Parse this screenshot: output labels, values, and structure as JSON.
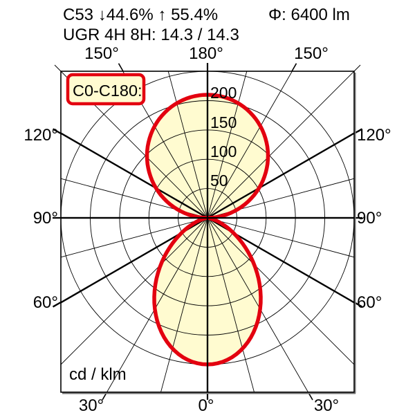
{
  "page": {
    "background": "#ffffff"
  },
  "header": {
    "line1_left": "C53 ↓44.6% ↑ 55.4%",
    "line1_right": "Φ: 6400 lm",
    "line2": "UGR 4H 8H: 14.3 / 14.3"
  },
  "legend": {
    "label": "C0-C180:",
    "fill_color": "#fffbd0",
    "border_color": "#e3000f",
    "text_color": "#c41414"
  },
  "colors": {
    "curve": "#e3000f",
    "lobe_fill": "#fffbd0",
    "grid": "#000000",
    "background": "#ffffff"
  },
  "chart_data": {
    "type": "polar",
    "subtype": "luminous-intensity-distribution",
    "unit_label": "cd / klm",
    "scale": {
      "ring_max_cd_klm": 250
    },
    "rings": {
      "values": [
        50,
        100,
        150,
        200,
        250
      ],
      "label_texts": [
        "50",
        "100",
        "150",
        "200"
      ]
    },
    "spoke_step_deg": 15,
    "thick_spokes_deg": [
      0,
      60,
      90,
      120,
      180
    ],
    "angle_labels": [
      {
        "pos": "top-left",
        "text": "150°"
      },
      {
        "pos": "top-center",
        "text": "180°"
      },
      {
        "pos": "top-right",
        "text": "150°"
      },
      {
        "pos": "left-upper",
        "text": "120°"
      },
      {
        "pos": "left-middle",
        "text": "90°"
      },
      {
        "pos": "left-lower",
        "text": "60°"
      },
      {
        "pos": "right-upper",
        "text": "120°"
      },
      {
        "pos": "right-middle",
        "text": "90°"
      },
      {
        "pos": "right-lower",
        "text": "60°"
      },
      {
        "pos": "bottom-left",
        "text": "30°"
      },
      {
        "pos": "bottom-center",
        "text": "0°"
      },
      {
        "pos": "bottom-right",
        "text": "30°"
      }
    ],
    "series": [
      {
        "name": "C0-C180",
        "color": "#e3000f",
        "fill": "#fffbd0",
        "gamma_deg": [
          0,
          15,
          30,
          45,
          60,
          75,
          90,
          105,
          120,
          135,
          150,
          165,
          180
        ],
        "values_cd_klm": [
          250,
          231,
          180,
          113,
          51,
          11,
          0,
          51,
          101,
          146,
          181,
          202,
          210
        ],
        "lobe_model": {
          "lower": {
            "max_cd_klm": 250,
            "cos_exponent": 2.3
          },
          "upper": {
            "max_cd_klm": 210,
            "cos_exponent": 1.05
          }
        }
      }
    ]
  }
}
